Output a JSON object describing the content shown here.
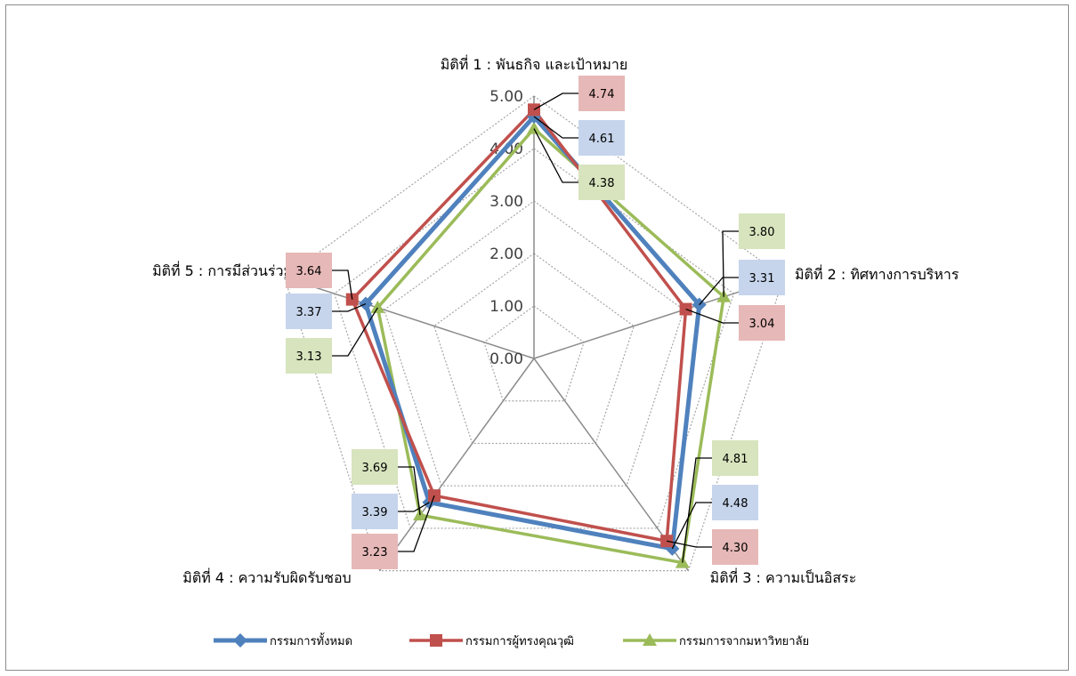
{
  "chart_data": {
    "type": "radar",
    "axes": [
      "มิติที่ 1 : พันธกิจ และเป้าหมาย",
      "มิติที่ 2 :  ทิศทางการบริหาร",
      "มิติที่ 3 : ความเป็นอิสระ",
      "มิติที่ 4 : ความรับผิดรับชอบ",
      "มิติที่ 5 : การมีส่วนร่วม"
    ],
    "ticks": [
      "0.00",
      "1.00",
      "2.00",
      "3.00",
      "4.00",
      "5.00"
    ],
    "rlim": [
      0,
      5
    ],
    "grid": true,
    "legend_position": "bottom",
    "series": [
      {
        "name": "กรรมการทั้งหมด",
        "values": [
          4.61,
          3.31,
          4.48,
          3.39,
          3.37
        ],
        "labels": [
          "4.61",
          "3.31",
          "4.48",
          "3.39",
          "3.37"
        ],
        "color": "#4f81bd",
        "label_bg": "#c6d5ec",
        "marker": "diamond"
      },
      {
        "name": "กรรมการผู้ทรงคุณวุฒิ",
        "values": [
          4.74,
          3.04,
          4.3,
          3.23,
          3.64
        ],
        "labels": [
          "4.74",
          "3.04",
          "4.30",
          "3.23",
          "3.64"
        ],
        "color": "#c0504d",
        "label_bg": "#e6b8b7",
        "marker": "square"
      },
      {
        "name": "กรรมการจากมหาวิทยาลัย",
        "values": [
          4.38,
          3.8,
          4.81,
          3.69,
          3.13
        ],
        "labels": [
          "4.38",
          "3.80",
          "4.81",
          "3.69",
          "3.13"
        ],
        "color": "#9bbb59",
        "label_bg": "#d7e4bd",
        "marker": "triangle"
      }
    ]
  }
}
